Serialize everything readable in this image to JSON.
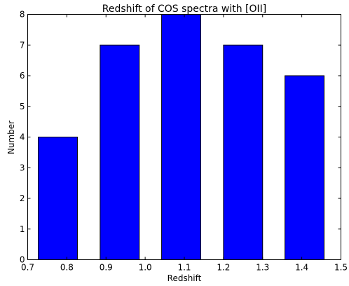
{
  "chart_data": {
    "type": "bar",
    "title": "Redshift of COS spectra with [OII]",
    "xlabel": "Redshift",
    "ylabel": "Number",
    "xlim": [
      0.7,
      1.5
    ],
    "ylim": [
      0,
      8
    ],
    "x_ticks": [
      "0.7",
      "0.8",
      "0.9",
      "1.0",
      "1.1",
      "1.2",
      "1.3",
      "1.4",
      "1.5"
    ],
    "y_ticks": [
      "0",
      "1",
      "2",
      "3",
      "4",
      "5",
      "6",
      "7",
      "8"
    ],
    "bars": [
      {
        "x_start": 0.727,
        "x_end": 0.827,
        "value": 4
      },
      {
        "x_start": 0.885,
        "x_end": 0.985,
        "value": 7
      },
      {
        "x_start": 1.042,
        "x_end": 1.142,
        "value": 8
      },
      {
        "x_start": 1.2,
        "x_end": 1.3,
        "value": 7
      },
      {
        "x_start": 1.357,
        "x_end": 1.457,
        "value": 6
      }
    ],
    "bar_color": "#0000ff",
    "bar_edge_color": "#000000",
    "grid": false,
    "legend": "none"
  }
}
